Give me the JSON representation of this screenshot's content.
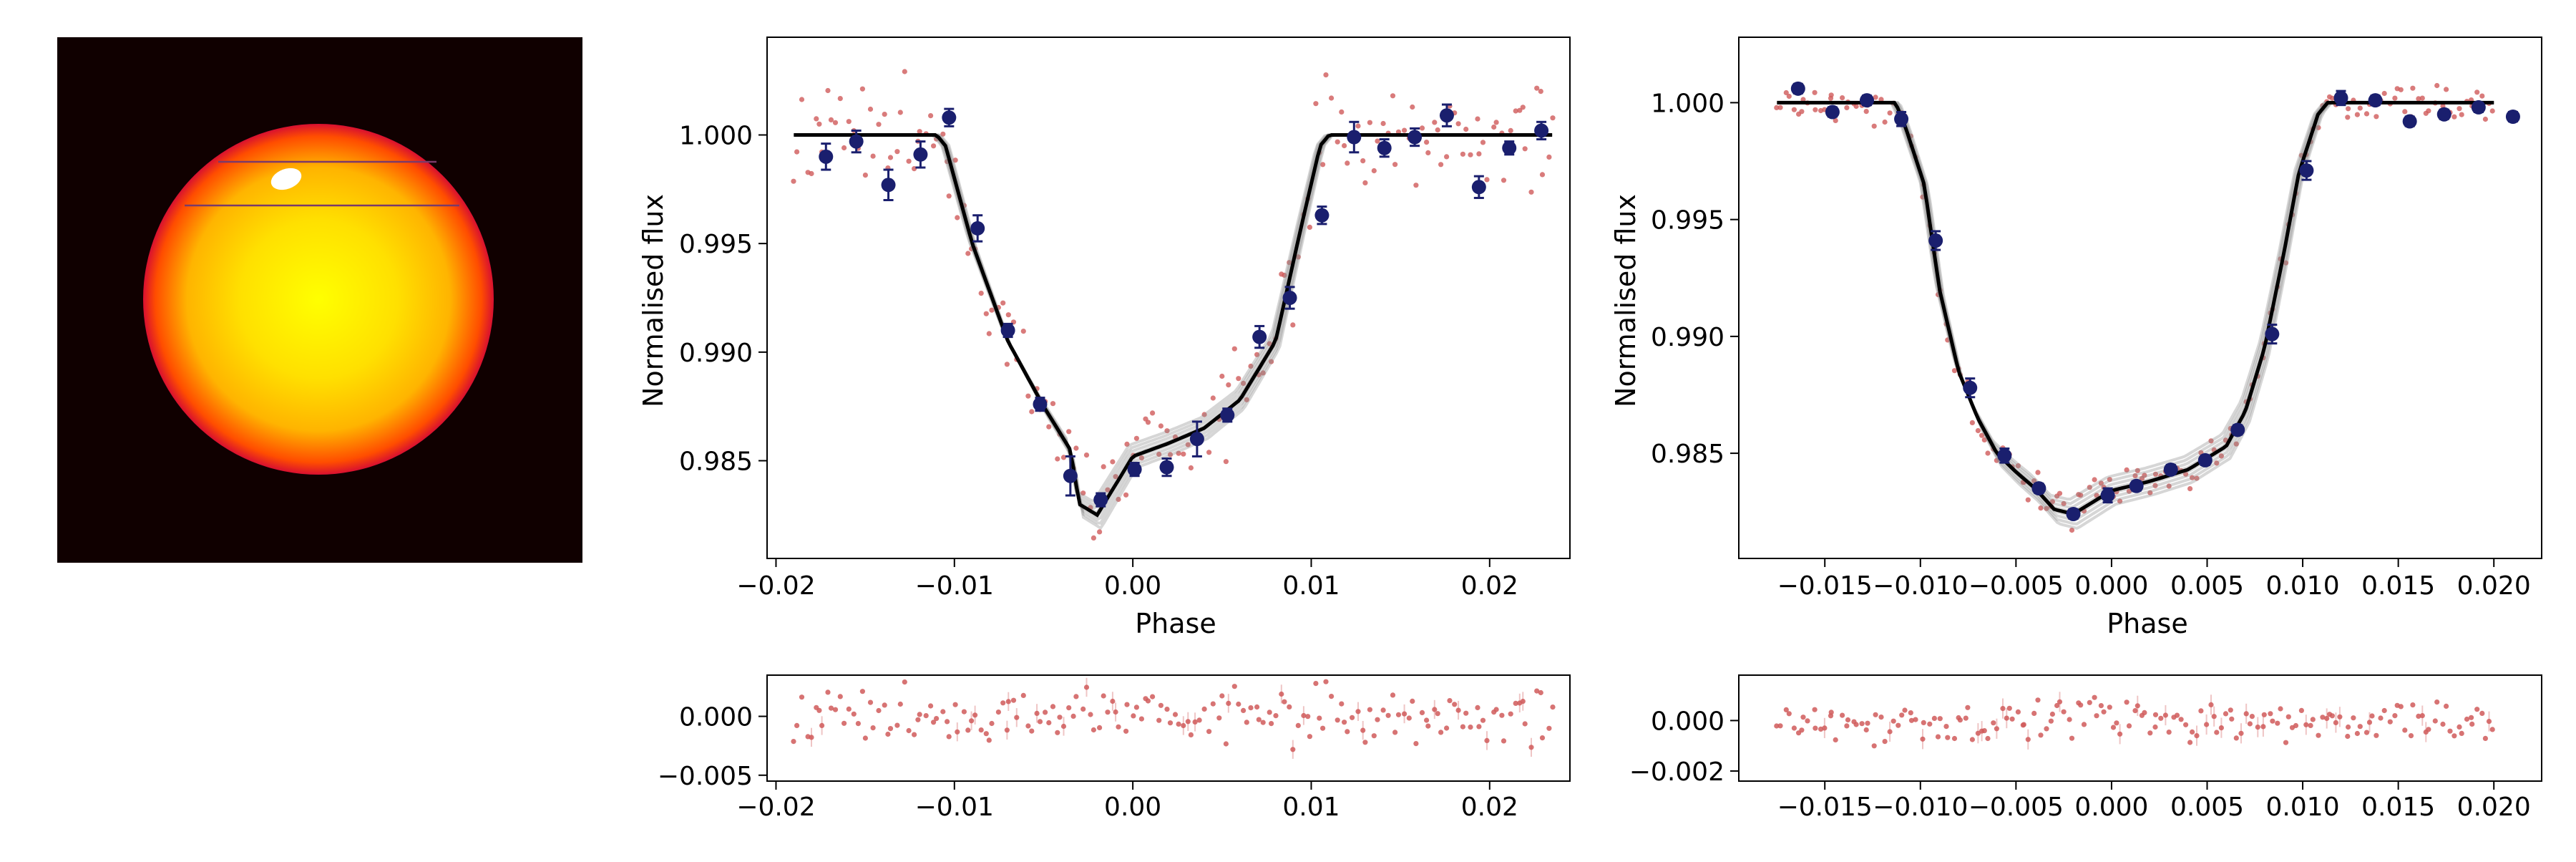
{
  "star_panel": {
    "background": "#100000",
    "disk_colors": [
      "#ffff00",
      "#ffb400",
      "#ff4d00",
      "#d81030"
    ],
    "spot_color": "#ffffff",
    "chord_color": "#7a3a6a",
    "chords": 2,
    "spots": 1
  },
  "chart_data": [
    {
      "type": "scatter",
      "panel": "light-curve-1",
      "xlabel": "Phase",
      "ylabel": "Normalised flux",
      "xlim": [
        -0.0205,
        0.0245
      ],
      "ylim": [
        0.9805,
        1.0045
      ],
      "xticks": [
        -0.02,
        -0.01,
        0.0,
        0.01,
        0.02
      ],
      "xtick_labels": [
        "−0.02",
        "−0.01",
        "0.00",
        "0.01",
        "0.02"
      ],
      "yticks": [
        0.985,
        0.99,
        0.995,
        1.0
      ],
      "ytick_labels": [
        "0.985",
        "0.990",
        "0.995",
        "1.000"
      ],
      "model": {
        "x": [
          -0.019,
          -0.011,
          -0.0105,
          -0.009,
          -0.007,
          -0.005,
          -0.0035,
          -0.003,
          -0.002,
          0.0,
          0.002,
          0.004,
          0.006,
          0.008,
          0.0095,
          0.0105,
          0.011,
          0.0235
        ],
        "y": [
          1.0,
          1.0,
          0.9995,
          0.995,
          0.9905,
          0.9875,
          0.9855,
          0.983,
          0.9825,
          0.9852,
          0.9858,
          0.9865,
          0.9878,
          0.9905,
          0.996,
          0.9995,
          1.0,
          1.0
        ]
      },
      "binned": {
        "x": [
          -0.0172,
          -0.0155,
          -0.0137,
          -0.0119,
          -0.0103,
          -0.0087,
          -0.007,
          -0.0052,
          -0.0035,
          -0.0018,
          0.0001,
          0.0019,
          0.0036,
          0.0053,
          0.0071,
          0.0088,
          0.0106,
          0.0124,
          0.0141,
          0.0158,
          0.0176,
          0.0194,
          0.0211,
          0.0229
        ],
        "y": [
          0.999,
          0.9997,
          0.9977,
          0.9991,
          1.0008,
          0.9957,
          0.991,
          0.9876,
          0.9843,
          0.9832,
          0.9846,
          0.9847,
          0.986,
          0.9871,
          0.9907,
          0.9925,
          0.9963,
          0.9999,
          0.9994,
          0.9999,
          1.0009,
          0.9976,
          0.9994,
          1.0002
        ],
        "err": [
          0.0006,
          0.0005,
          0.0007,
          0.0006,
          0.0004,
          0.0006,
          0.0003,
          0.0003,
          0.0009,
          0.0003,
          0.0003,
          0.0004,
          0.0008,
          0.0003,
          0.0005,
          0.0005,
          0.0004,
          0.0007,
          0.0004,
          0.0004,
          0.0005,
          0.0005,
          0.0003,
          0.0004
        ]
      },
      "residual_panel": {
        "ylim": [
          -0.0055,
          0.0035
        ],
        "yticks": [
          0.0,
          -0.005
        ],
        "ytick_labels": [
          "0.000",
          "−0.005"
        ],
        "xticks": [
          -0.02,
          -0.01,
          0.0,
          0.01,
          0.02
        ],
        "xtick_labels": [
          "−0.02",
          "−0.01",
          "0.00",
          "0.01",
          "0.02"
        ]
      }
    },
    {
      "type": "scatter",
      "panel": "light-curve-2",
      "xlabel": "Phase",
      "ylabel": "Normalised flux",
      "xlim": [
        -0.0195,
        0.0225
      ],
      "ylim": [
        0.9805,
        1.0028
      ],
      "xticks": [
        -0.015,
        -0.01,
        -0.005,
        0.0,
        0.005,
        0.01,
        0.015,
        0.02
      ],
      "xtick_labels": [
        "−0.015",
        "−0.010",
        "−0.005",
        "0.000",
        "0.005",
        "0.010",
        "0.015",
        "0.020"
      ],
      "yticks": [
        0.985,
        0.99,
        0.995,
        1.0
      ],
      "ytick_labels": [
        "0.985",
        "0.990",
        "0.995",
        "1.000"
      ],
      "model": {
        "x": [
          -0.0175,
          -0.0113,
          -0.0108,
          -0.0098,
          -0.009,
          -0.008,
          -0.007,
          -0.006,
          -0.005,
          -0.004,
          -0.003,
          -0.002,
          0.0,
          0.002,
          0.004,
          0.006,
          0.007,
          0.008,
          0.009,
          0.0098,
          0.0108,
          0.0113,
          0.02
        ],
        "y": [
          1.0,
          1.0,
          0.999,
          0.9965,
          0.992,
          0.9885,
          0.9865,
          0.985,
          0.9842,
          0.9835,
          0.9826,
          0.9824,
          0.9834,
          0.9838,
          0.9843,
          0.9853,
          0.9868,
          0.9895,
          0.9935,
          0.997,
          0.9995,
          1.0,
          1.0
        ]
      },
      "binned": {
        "x": [
          -0.0164,
          -0.0146,
          -0.0128,
          -0.011,
          -0.0092,
          -0.0074,
          -0.0056,
          -0.0038,
          -0.002,
          -0.0002,
          0.0013,
          0.0031,
          0.0049,
          0.0066,
          0.0084,
          0.0102,
          0.012,
          0.0138,
          0.0156,
          0.0174,
          0.0192,
          0.021
        ],
        "y": [
          1.0006,
          0.9996,
          1.0001,
          0.9993,
          0.9941,
          0.9878,
          0.9849,
          0.9835,
          0.9824,
          0.9832,
          0.9836,
          0.9843,
          0.9847,
          0.986,
          0.9901,
          0.9971,
          1.0002,
          1.0001,
          0.9992,
          0.9995,
          0.9998,
          0.9994
        ],
        "err": [
          0.0002,
          0.0002,
          0.0002,
          0.0003,
          0.0004,
          0.0004,
          0.0003,
          0.0002,
          0.0002,
          0.0003,
          0.0002,
          0.0002,
          0.0002,
          0.0002,
          0.0004,
          0.0004,
          0.0003,
          0.0002,
          0.0002,
          0.0002,
          0.0002,
          0.0002
        ]
      },
      "residual_panel": {
        "ylim": [
          -0.0024,
          0.0018
        ],
        "yticks": [
          0.0,
          -0.002
        ],
        "ytick_labels": [
          "0.000",
          "−0.002"
        ],
        "xticks": [
          -0.015,
          -0.01,
          -0.005,
          0.0,
          0.005,
          0.01,
          0.015,
          0.02
        ],
        "xtick_labels": [
          "−0.015",
          "−0.010",
          "−0.005",
          "0.000",
          "0.005",
          "0.010",
          "0.015",
          "0.020"
        ]
      }
    }
  ],
  "colors": {
    "raw_points": "#d05a5a",
    "binned_points": "#1a1f6e",
    "model_line": "#000000",
    "model_samples": "#8a8a8a"
  }
}
